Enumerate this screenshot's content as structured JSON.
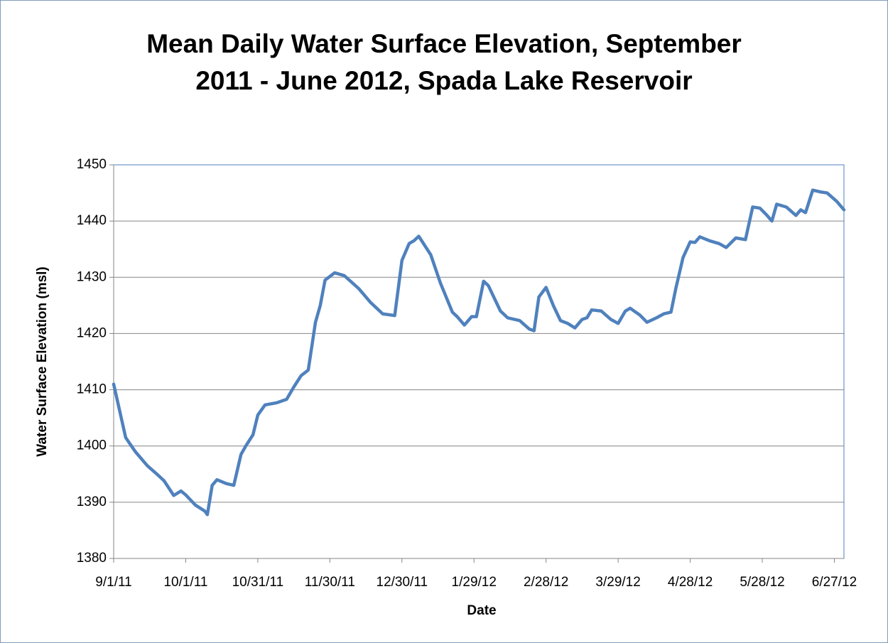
{
  "chart_data": {
    "type": "line",
    "title": "Mean Daily Water Surface Elevation, September 2011 - June 2012, Spada Lake Reservoir",
    "xlabel": "Date",
    "ylabel": "Water Surface Elevation (msl)",
    "x": [
      "2011-09-01",
      "2011-09-06",
      "2011-09-10",
      "2011-09-15",
      "2011-09-19",
      "2011-09-22",
      "2011-09-26",
      "2011-09-29",
      "2011-10-01",
      "2011-10-05",
      "2011-10-09",
      "2011-10-10",
      "2011-10-12",
      "2011-10-14",
      "2011-10-18",
      "2011-10-21",
      "2011-10-24",
      "2011-10-26",
      "2011-10-29",
      "2011-10-31",
      "2011-11-03",
      "2011-11-08",
      "2011-11-12",
      "2011-11-15",
      "2011-11-18",
      "2011-11-21",
      "2011-11-24",
      "2011-11-26",
      "2011-11-28",
      "2011-12-02",
      "2011-12-06",
      "2011-12-12",
      "2011-12-17",
      "2011-12-22",
      "2011-12-27",
      "2011-12-30",
      "2012-01-02",
      "2012-01-04",
      "2012-01-06",
      "2012-01-11",
      "2012-01-15",
      "2012-01-20",
      "2012-01-22",
      "2012-01-25",
      "2012-01-28",
      "2012-01-30",
      "2012-02-02",
      "2012-02-04",
      "2012-02-09",
      "2012-02-12",
      "2012-02-17",
      "2012-02-21",
      "2012-02-23",
      "2012-02-25",
      "2012-02-28",
      "2012-03-02",
      "2012-03-05",
      "2012-03-08",
      "2012-03-11",
      "2012-03-14",
      "2012-03-16",
      "2012-03-18",
      "2012-03-22",
      "2012-03-26",
      "2012-03-29",
      "2012-04-01",
      "2012-04-03",
      "2012-04-07",
      "2012-04-10",
      "2012-04-14",
      "2012-04-17",
      "2012-04-20",
      "2012-04-22",
      "2012-04-25",
      "2012-04-28",
      "2012-04-30",
      "2012-05-02",
      "2012-05-06",
      "2012-05-10",
      "2012-05-13",
      "2012-05-17",
      "2012-05-21",
      "2012-05-24",
      "2012-05-27",
      "2012-05-30",
      "2012-06-01",
      "2012-06-03",
      "2012-06-07",
      "2012-06-11",
      "2012-06-13",
      "2012-06-15",
      "2012-06-18",
      "2012-06-21",
      "2012-06-24",
      "2012-06-28",
      "2012-07-01"
    ],
    "series": [
      {
        "name": "Water Surface Elevation",
        "color": "#4f81bd",
        "values": [
          1411,
          1401.5,
          1399,
          1396.5,
          1395,
          1393.8,
          1391.2,
          1392,
          1391.3,
          1389.5,
          1388.4,
          1387.8,
          1393,
          1394,
          1393.3,
          1393,
          1398.5,
          1400,
          1402,
          1405.5,
          1407.3,
          1407.7,
          1408.3,
          1410.5,
          1412.5,
          1413.5,
          1422,
          1425,
          1429.5,
          1430.8,
          1430.3,
          1428,
          1425.5,
          1423.5,
          1423.2,
          1433,
          1436,
          1436.5,
          1437.3,
          1434,
          1429,
          1423.8,
          1423,
          1421.5,
          1423,
          1423,
          1429.3,
          1428.5,
          1424,
          1422.8,
          1422.3,
          1420.8,
          1420.5,
          1426.5,
          1428.2,
          1425,
          1422.3,
          1421.8,
          1421,
          1422.5,
          1422.8,
          1424.2,
          1424,
          1422.5,
          1421.8,
          1424,
          1424.5,
          1423.3,
          1422,
          1422.8,
          1423.5,
          1423.8,
          1428,
          1433.5,
          1436.3,
          1436.2,
          1437.2,
          1436.5,
          1436,
          1435.3,
          1437,
          1436.7,
          1442.5,
          1442.3,
          1441,
          1440,
          1443,
          1442.5,
          1441,
          1442,
          1441.5,
          1445.5,
          1445.2,
          1445,
          1443.5,
          1442
        ]
      }
    ],
    "xlim": [
      "2011-09-01",
      "2012-07-01"
    ],
    "xticks": [
      {
        "value": "2011-09-01",
        "label": "9/1/11"
      },
      {
        "value": "2011-10-01",
        "label": "10/1/11"
      },
      {
        "value": "2011-10-31",
        "label": "10/31/11"
      },
      {
        "value": "2011-11-30",
        "label": "11/30/11"
      },
      {
        "value": "2011-12-30",
        "label": "12/30/11"
      },
      {
        "value": "2012-01-29",
        "label": "1/29/12"
      },
      {
        "value": "2012-02-28",
        "label": "2/28/12"
      },
      {
        "value": "2012-03-29",
        "label": "3/29/12"
      },
      {
        "value": "2012-04-28",
        "label": "4/28/12"
      },
      {
        "value": "2012-05-28",
        "label": "5/28/12"
      },
      {
        "value": "2012-06-27",
        "label": "6/27/12"
      }
    ],
    "ylim": [
      1380,
      1450
    ],
    "yticks": [
      1380,
      1390,
      1400,
      1410,
      1420,
      1430,
      1440,
      1450
    ],
    "grid": true,
    "legend": false
  }
}
